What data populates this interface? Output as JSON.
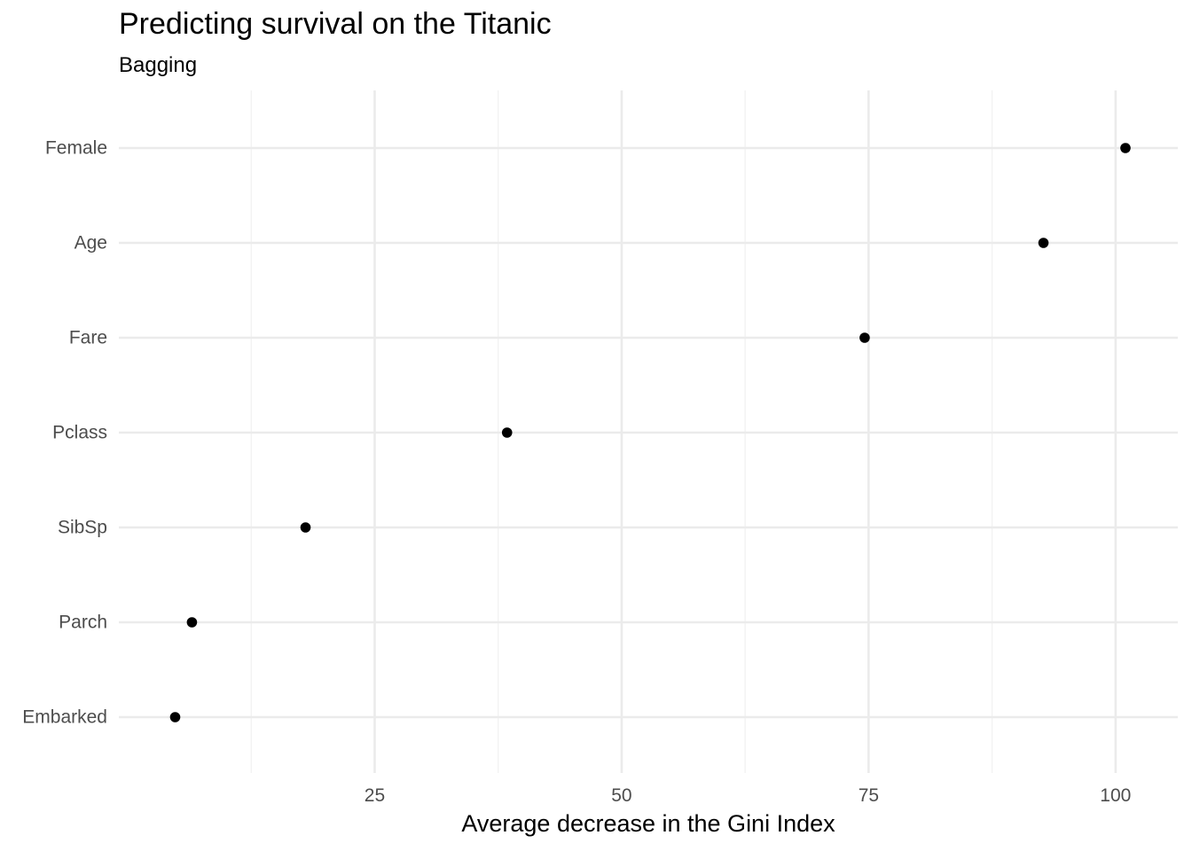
{
  "chart_data": {
    "type": "scatter",
    "title": "Predicting survival on the Titanic",
    "subtitle": "Bagging",
    "xlabel": "Average decrease in the Gini Index",
    "ylabel": "",
    "categories": [
      "Embarked",
      "Parch",
      "SibSp",
      "Pclass",
      "Fare",
      "Age",
      "Female"
    ],
    "values": [
      4.8,
      6.5,
      18.0,
      38.4,
      74.6,
      92.7,
      101.0
    ],
    "xticks": [
      25,
      50,
      75,
      100
    ],
    "xlim": [
      -0.9,
      106.3
    ],
    "grid": true,
    "colors": {
      "point": "#000000",
      "grid_major": "#ebebeb",
      "grid_minor": "#f2f2f2",
      "tick_text": "#4d4d4d"
    }
  }
}
